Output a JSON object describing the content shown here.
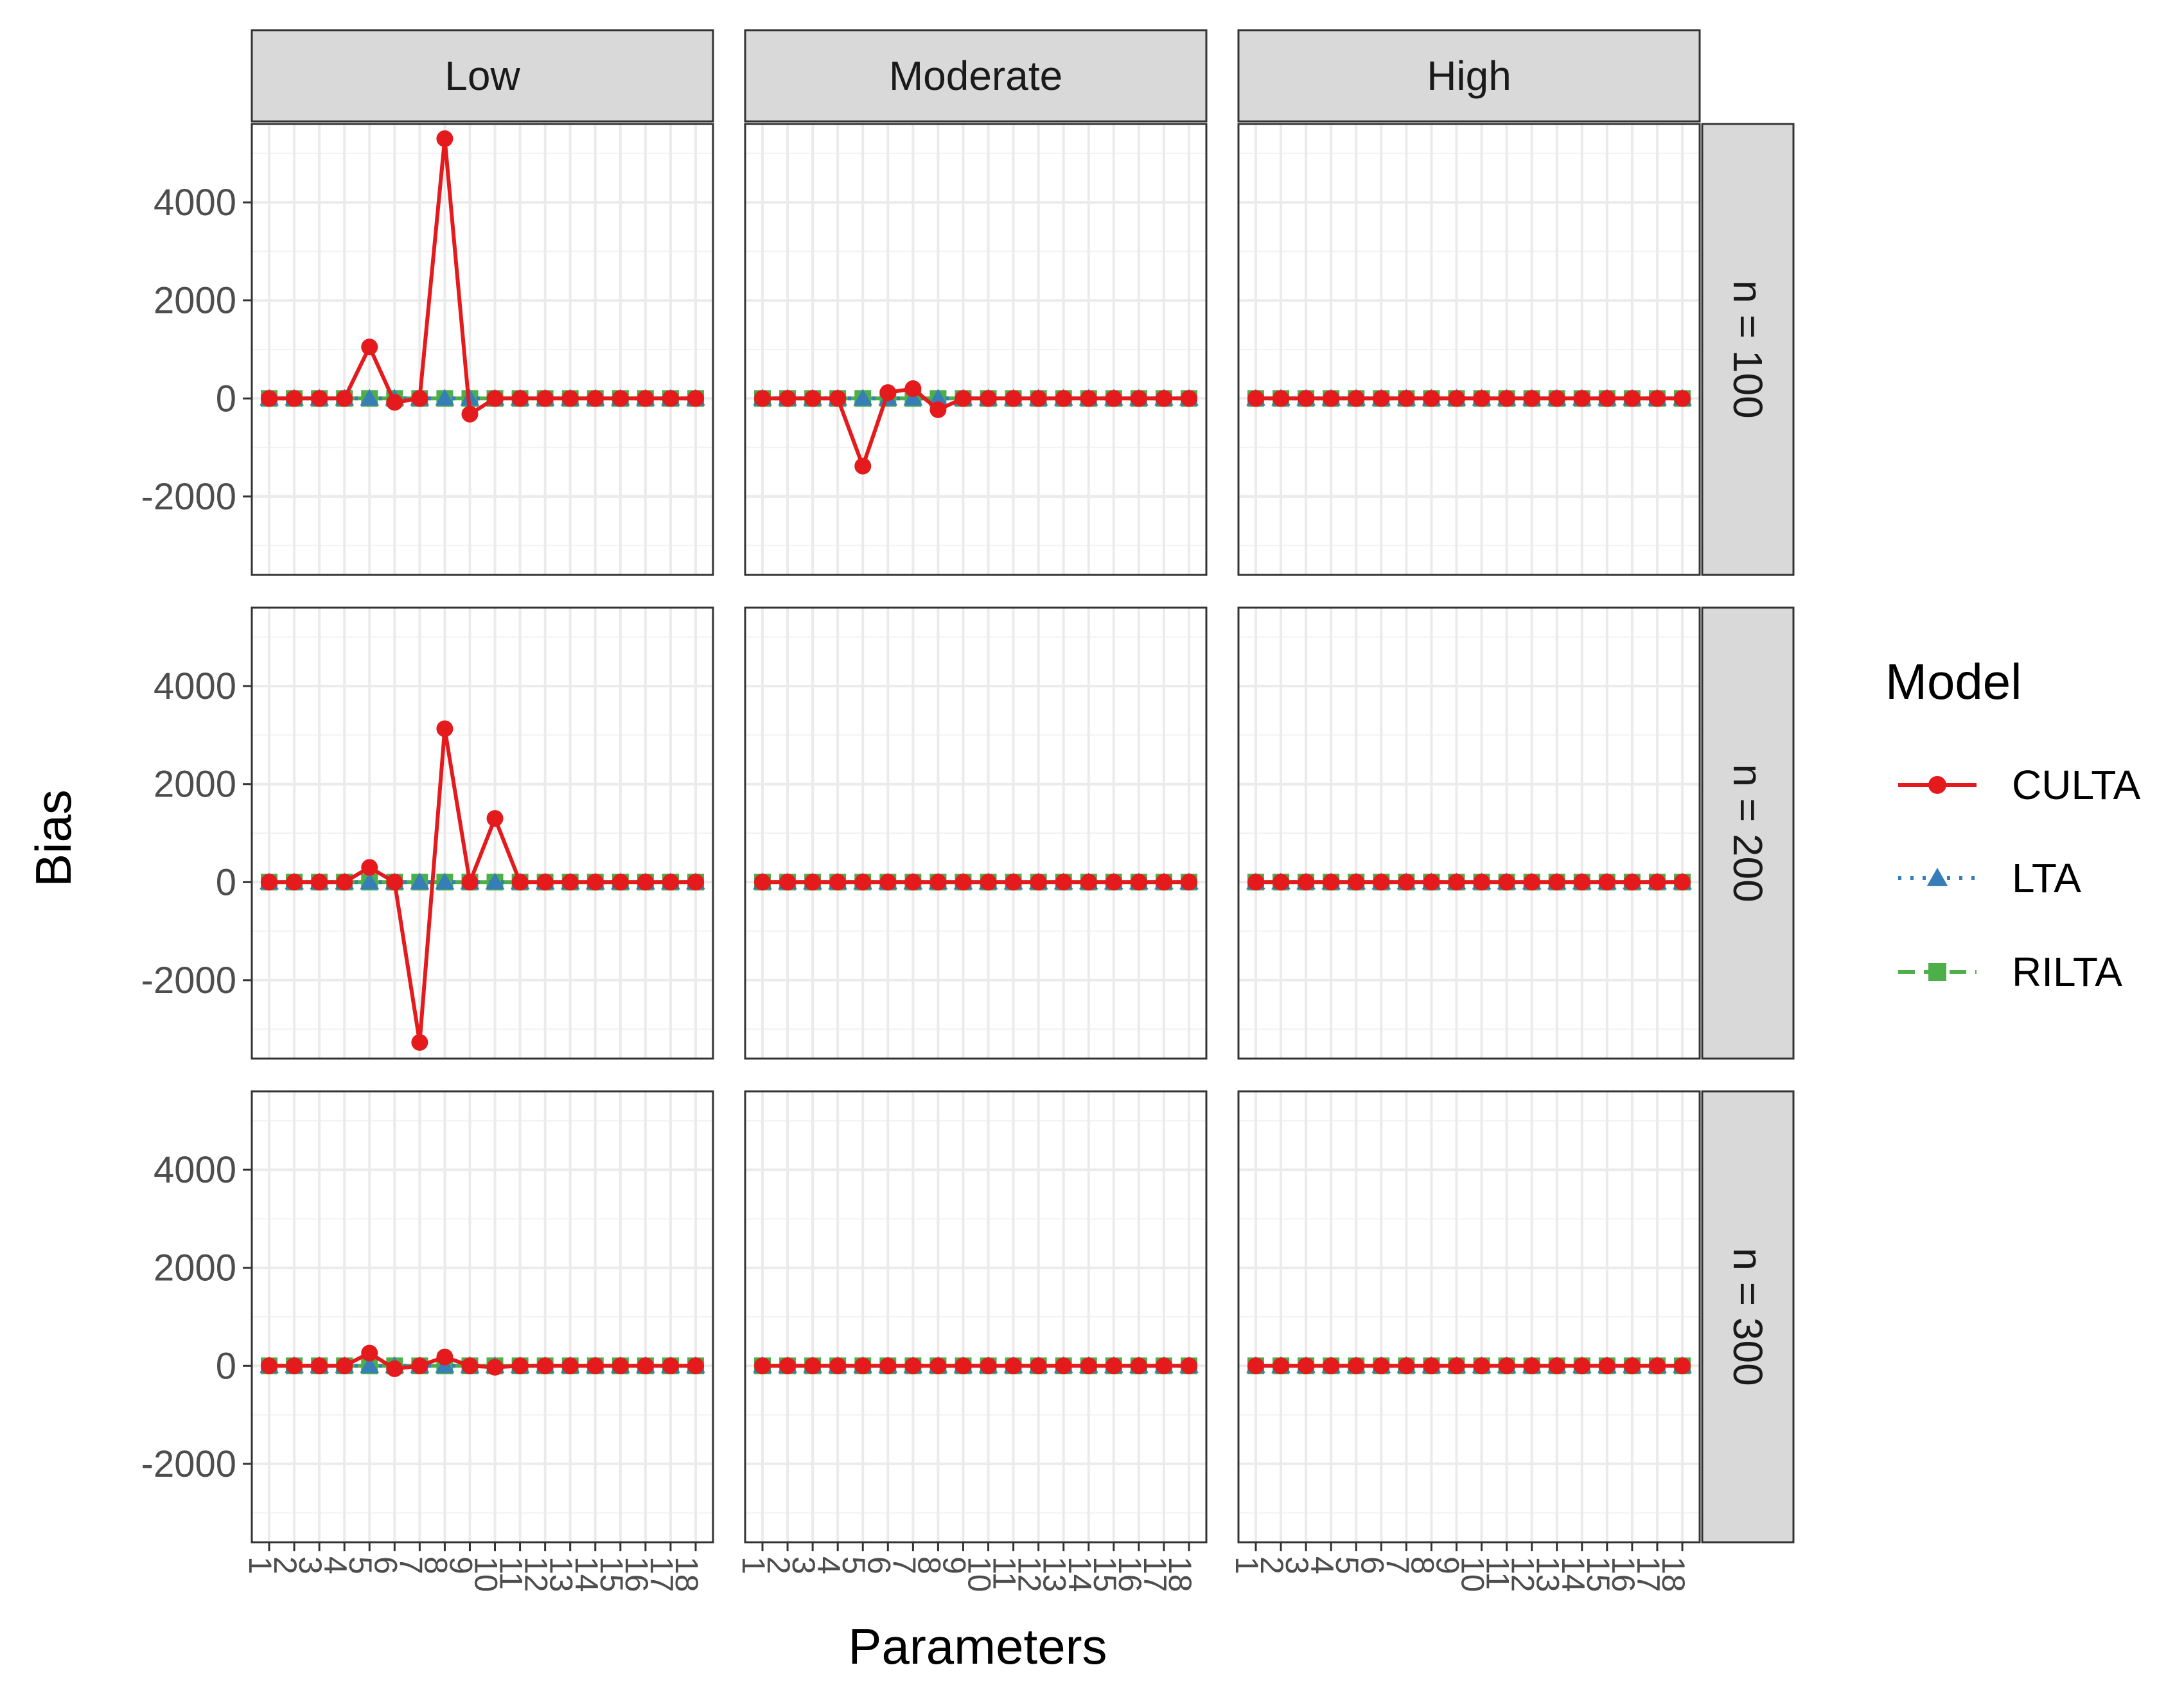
{
  "chart_data": {
    "type": "line",
    "layout": "facet-grid",
    "xlabel": "Parameters",
    "ylabel": "Bias",
    "x": [
      1,
      2,
      3,
      4,
      5,
      6,
      7,
      8,
      9,
      10,
      11,
      12,
      13,
      14,
      15,
      16,
      17,
      18
    ],
    "x_tick_labels": [
      "1",
      "2",
      "3",
      "4",
      "5",
      "6",
      "7",
      "8",
      "9",
      "10",
      "11",
      "12",
      "13",
      "14",
      "15",
      "16",
      "17",
      "18"
    ],
    "ylim": [
      -3600,
      5600
    ],
    "y_ticks": [
      -2000,
      0,
      2000,
      4000
    ],
    "y_tick_labels": [
      "-2000",
      "0",
      "2000",
      "4000"
    ],
    "grid": true,
    "columns": [
      "Low",
      "Moderate",
      "High"
    ],
    "rows": [
      "n = 100",
      "n = 200",
      "n = 300"
    ],
    "legend": {
      "title": "Model",
      "position": "right",
      "entries": [
        {
          "name": "CULTA",
          "color": "#E41A1C",
          "marker": "circle",
          "line": "solid"
        },
        {
          "name": "LTA",
          "color": "#377EB8",
          "marker": "triangle",
          "line": "dotted"
        },
        {
          "name": "RILTA",
          "color": "#4DAF4A",
          "marker": "square",
          "line": "dashed"
        }
      ]
    },
    "panels": [
      {
        "row": "n = 100",
        "col": "Low",
        "series": [
          {
            "name": "CULTA",
            "values": [
              0,
              0,
              0,
              0,
              1050,
              -80,
              0,
              5300,
              -320,
              0,
              0,
              0,
              0,
              0,
              0,
              0,
              0,
              0
            ]
          },
          {
            "name": "LTA",
            "values": [
              0,
              0,
              0,
              0,
              0,
              0,
              0,
              0,
              0,
              0,
              0,
              0,
              0,
              0,
              0,
              0,
              0,
              0
            ]
          },
          {
            "name": "RILTA",
            "values": [
              0,
              0,
              0,
              0,
              0,
              0,
              0,
              0,
              0,
              0,
              0,
              0,
              0,
              0,
              0,
              0,
              0,
              0
            ]
          }
        ]
      },
      {
        "row": "n = 100",
        "col": "Moderate",
        "series": [
          {
            "name": "CULTA",
            "values": [
              0,
              0,
              0,
              0,
              -1380,
              120,
              200,
              -230,
              0,
              0,
              0,
              0,
              0,
              0,
              0,
              0,
              0,
              0
            ]
          },
          {
            "name": "LTA",
            "values": [
              0,
              0,
              0,
              0,
              0,
              0,
              0,
              0,
              0,
              0,
              0,
              0,
              0,
              0,
              0,
              0,
              0,
              0
            ]
          },
          {
            "name": "RILTA",
            "values": [
              0,
              0,
              0,
              0,
              0,
              0,
              0,
              0,
              0,
              0,
              0,
              0,
              0,
              0,
              0,
              0,
              0,
              0
            ]
          }
        ]
      },
      {
        "row": "n = 100",
        "col": "High",
        "series": [
          {
            "name": "CULTA",
            "values": [
              0,
              0,
              0,
              0,
              0,
              0,
              0,
              0,
              0,
              0,
              0,
              0,
              0,
              0,
              0,
              0,
              0,
              0
            ]
          },
          {
            "name": "LTA",
            "values": [
              0,
              0,
              0,
              0,
              0,
              0,
              0,
              0,
              0,
              0,
              0,
              0,
              0,
              0,
              0,
              0,
              0,
              0
            ]
          },
          {
            "name": "RILTA",
            "values": [
              0,
              0,
              0,
              0,
              0,
              0,
              0,
              0,
              0,
              0,
              0,
              0,
              0,
              0,
              0,
              0,
              0,
              0
            ]
          }
        ]
      },
      {
        "row": "n = 200",
        "col": "Low",
        "series": [
          {
            "name": "CULTA",
            "values": [
              0,
              0,
              0,
              0,
              300,
              0,
              -3270,
              3130,
              0,
              1300,
              0,
              0,
              0,
              0,
              0,
              0,
              0,
              0
            ]
          },
          {
            "name": "LTA",
            "values": [
              0,
              0,
              0,
              0,
              0,
              0,
              0,
              0,
              0,
              0,
              0,
              0,
              0,
              0,
              0,
              0,
              0,
              0
            ]
          },
          {
            "name": "RILTA",
            "values": [
              0,
              0,
              0,
              0,
              0,
              0,
              0,
              0,
              0,
              0,
              0,
              0,
              0,
              0,
              0,
              0,
              0,
              0
            ]
          }
        ]
      },
      {
        "row": "n = 200",
        "col": "Moderate",
        "series": [
          {
            "name": "CULTA",
            "values": [
              0,
              0,
              0,
              0,
              0,
              0,
              0,
              0,
              0,
              0,
              0,
              0,
              0,
              0,
              0,
              0,
              0,
              0
            ]
          },
          {
            "name": "LTA",
            "values": [
              0,
              0,
              0,
              0,
              0,
              0,
              0,
              0,
              0,
              0,
              0,
              0,
              0,
              0,
              0,
              0,
              0,
              0
            ]
          },
          {
            "name": "RILTA",
            "values": [
              0,
              0,
              0,
              0,
              0,
              0,
              0,
              0,
              0,
              0,
              0,
              0,
              0,
              0,
              0,
              0,
              0,
              0
            ]
          }
        ]
      },
      {
        "row": "n = 200",
        "col": "High",
        "series": [
          {
            "name": "CULTA",
            "values": [
              0,
              0,
              0,
              0,
              0,
              0,
              0,
              0,
              0,
              0,
              0,
              0,
              0,
              0,
              0,
              0,
              0,
              0
            ]
          },
          {
            "name": "LTA",
            "values": [
              0,
              0,
              0,
              0,
              0,
              0,
              0,
              0,
              0,
              0,
              0,
              0,
              0,
              0,
              0,
              0,
              0,
              0
            ]
          },
          {
            "name": "RILTA",
            "values": [
              0,
              0,
              0,
              0,
              0,
              0,
              0,
              0,
              0,
              0,
              0,
              0,
              0,
              0,
              0,
              0,
              0,
              0
            ]
          }
        ]
      },
      {
        "row": "n = 300",
        "col": "Low",
        "series": [
          {
            "name": "CULTA",
            "values": [
              0,
              0,
              0,
              0,
              260,
              -60,
              0,
              180,
              0,
              -30,
              0,
              0,
              0,
              0,
              0,
              0,
              0,
              0
            ]
          },
          {
            "name": "LTA",
            "values": [
              0,
              0,
              0,
              0,
              0,
              0,
              0,
              0,
              0,
              0,
              0,
              0,
              0,
              0,
              0,
              0,
              0,
              0
            ]
          },
          {
            "name": "RILTA",
            "values": [
              0,
              0,
              0,
              0,
              0,
              0,
              0,
              0,
              0,
              0,
              0,
              0,
              0,
              0,
              0,
              0,
              0,
              0
            ]
          }
        ]
      },
      {
        "row": "n = 300",
        "col": "Moderate",
        "series": [
          {
            "name": "CULTA",
            "values": [
              0,
              0,
              0,
              0,
              0,
              0,
              0,
              0,
              0,
              0,
              0,
              0,
              0,
              0,
              0,
              0,
              0,
              0
            ]
          },
          {
            "name": "LTA",
            "values": [
              0,
              0,
              0,
              0,
              0,
              0,
              0,
              0,
              0,
              0,
              0,
              0,
              0,
              0,
              0,
              0,
              0,
              0
            ]
          },
          {
            "name": "RILTA",
            "values": [
              0,
              0,
              0,
              0,
              0,
              0,
              0,
              0,
              0,
              0,
              0,
              0,
              0,
              0,
              0,
              0,
              0,
              0
            ]
          }
        ]
      },
      {
        "row": "n = 300",
        "col": "High",
        "series": [
          {
            "name": "CULTA",
            "values": [
              0,
              0,
              0,
              0,
              0,
              0,
              0,
              0,
              0,
              0,
              0,
              0,
              0,
              0,
              0,
              0,
              0,
              0
            ]
          },
          {
            "name": "LTA",
            "values": [
              0,
              0,
              0,
              0,
              0,
              0,
              0,
              0,
              0,
              0,
              0,
              0,
              0,
              0,
              0,
              0,
              0,
              0
            ]
          },
          {
            "name": "RILTA",
            "values": [
              0,
              0,
              0,
              0,
              0,
              0,
              0,
              0,
              0,
              0,
              0,
              0,
              0,
              0,
              0,
              0,
              0,
              0
            ]
          }
        ]
      }
    ]
  }
}
